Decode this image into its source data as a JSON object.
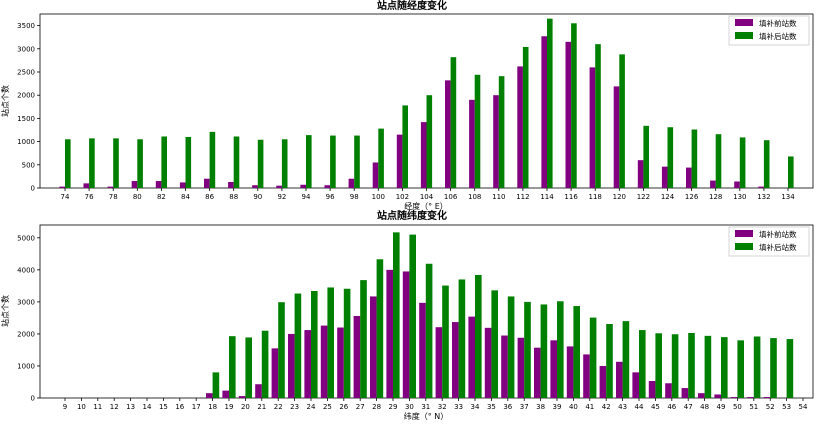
{
  "chart_data": [
    {
      "type": "bar",
      "title": "站点随经度变化",
      "xlabel": "经度（° E）",
      "ylabel": "站点个数",
      "ylim": [
        0,
        3750
      ],
      "yticks": [
        0,
        500,
        1000,
        1500,
        2000,
        2500,
        3000,
        3500
      ],
      "legend_position": "top-right",
      "categories": [
        "74",
        "76",
        "78",
        "80",
        "82",
        "84",
        "86",
        "88",
        "90",
        "92",
        "94",
        "96",
        "98",
        "100",
        "102",
        "104",
        "106",
        "108",
        "110",
        "112",
        "114",
        "116",
        "118",
        "120",
        "122",
        "124",
        "126",
        "128",
        "130",
        "132",
        "134"
      ],
      "series": [
        {
          "name": "填补前站数",
          "color": "#800080",
          "values": [
            30,
            100,
            30,
            150,
            150,
            120,
            200,
            130,
            60,
            50,
            70,
            60,
            200,
            550,
            1150,
            1420,
            2320,
            1900,
            2000,
            2620,
            3270,
            3150,
            2600,
            2190,
            600,
            460,
            440,
            160,
            140,
            30,
            0
          ]
        },
        {
          "name": "填补后站数",
          "color": "#008000",
          "values": [
            1050,
            1070,
            1070,
            1050,
            1110,
            1100,
            1210,
            1110,
            1040,
            1050,
            1140,
            1130,
            1130,
            1280,
            1780,
            2000,
            2820,
            2440,
            2410,
            3040,
            3650,
            3550,
            3100,
            2880,
            1340,
            1310,
            1260,
            1160,
            1090,
            1030,
            680
          ]
        }
      ]
    },
    {
      "type": "bar",
      "title": "站点随纬度变化",
      "xlabel": "纬度（° N）",
      "ylabel": "站点个数",
      "ylim": [
        0,
        5400
      ],
      "yticks": [
        0,
        1000,
        2000,
        3000,
        4000,
        5000
      ],
      "legend_position": "top-right",
      "categories": [
        "9",
        "10",
        "11",
        "12",
        "13",
        "14",
        "15",
        "16",
        "17",
        "18",
        "19",
        "20",
        "21",
        "22",
        "23",
        "24",
        "25",
        "26",
        "27",
        "28",
        "29",
        "30",
        "31",
        "32",
        "33",
        "34",
        "35",
        "36",
        "37",
        "38",
        "39",
        "40",
        "41",
        "42",
        "43",
        "44",
        "45",
        "46",
        "47",
        "48",
        "49",
        "50",
        "51",
        "52",
        "53",
        "54"
      ],
      "series": [
        {
          "name": "填补前站数",
          "color": "#800080",
          "values": [
            0,
            0,
            0,
            0,
            0,
            0,
            0,
            0,
            0,
            150,
            230,
            60,
            430,
            1550,
            2000,
            2120,
            2260,
            2200,
            2560,
            3170,
            4000,
            3950,
            2970,
            2210,
            2370,
            2540,
            2190,
            1950,
            1880,
            1570,
            1800,
            1610,
            1360,
            1000,
            1130,
            800,
            530,
            460,
            310,
            150,
            110,
            30,
            30,
            30,
            0,
            0
          ]
        },
        {
          "name": "填补后站数",
          "color": "#008000",
          "values": [
            0,
            0,
            0,
            0,
            0,
            0,
            0,
            0,
            0,
            800,
            1930,
            1890,
            2100,
            2990,
            3260,
            3340,
            3450,
            3410,
            3680,
            4330,
            5170,
            5100,
            4190,
            3510,
            3700,
            3840,
            3360,
            3170,
            3000,
            2920,
            3020,
            2870,
            2510,
            2310,
            2400,
            2120,
            2020,
            1990,
            2030,
            1940,
            1900,
            1800,
            1920,
            1870,
            1840,
            0
          ]
        }
      ]
    }
  ]
}
